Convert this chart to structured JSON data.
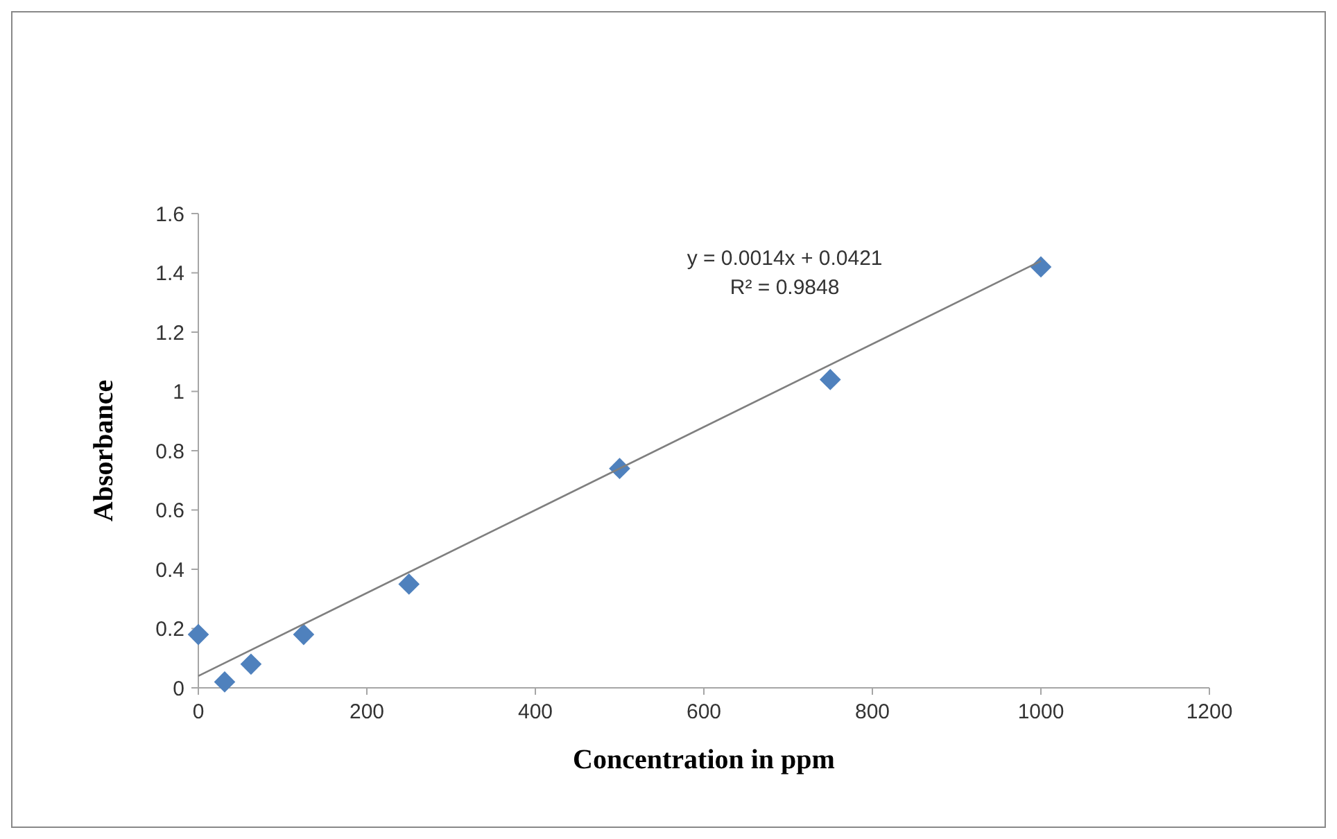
{
  "chart_data": {
    "type": "scatter",
    "xlabel": "Concentration in ppm",
    "ylabel": "Absorbance",
    "x": [
      0,
      31.25,
      62.5,
      125,
      250,
      500,
      750,
      1000
    ],
    "series": [
      {
        "color": "#4f81bd",
        "values": [
          0.18,
          0.02,
          0.08,
          0.18,
          0.35,
          0.74,
          1.04,
          1.42
        ]
      },
      {
        "type": "line",
        "marker": "none",
        "color": "#7f7f7f",
        "x": [
          0,
          1000
        ],
        "values": [
          0.04,
          1.44
        ]
      }
    ],
    "annotations": [
      "y = 0.0014x + 0.0421",
      "R² = 0.9848"
    ],
    "marker": "diamond",
    "grid": false,
    "xlim": [
      0,
      1200
    ],
    "xticks": [
      0,
      200,
      400,
      600,
      800,
      1000,
      1200
    ],
    "ylim": [
      0,
      1.6
    ],
    "yticks": [
      0,
      0.2,
      0.4,
      0.6,
      0.8,
      1,
      1.2,
      1.4,
      1.6
    ]
  }
}
